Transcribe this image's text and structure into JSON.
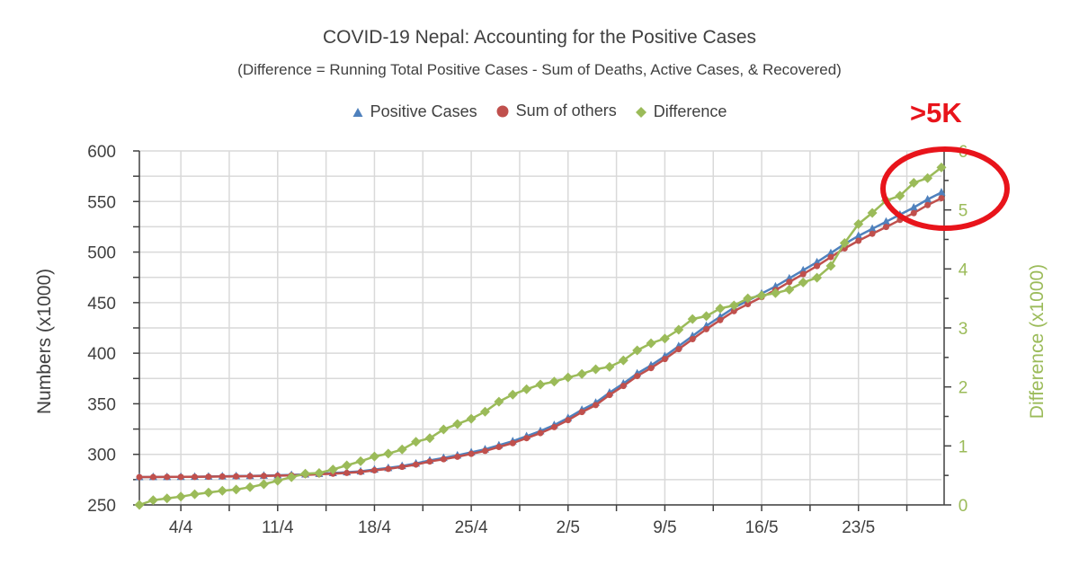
{
  "chart_data": {
    "type": "line",
    "title": "COVID-19 Nepal: Accounting for the Positive Cases",
    "subtitle": "(Difference = Running Total Positive Cases - Sum of Deaths, Active Cases, & Recovered)",
    "ylabel": "Numbers (x1000)",
    "y2label": "Difference (x1000)",
    "ylim": [
      250,
      600
    ],
    "y2lim": [
      0,
      6
    ],
    "yticks": [
      "250",
      "300",
      "350",
      "400",
      "450",
      "500",
      "550",
      "600"
    ],
    "y2ticks": [
      "0",
      "1",
      "2",
      "3",
      "4",
      "5",
      "6"
    ],
    "xticks": [
      "4/4",
      "11/4",
      "18/4",
      "25/4",
      "2/5",
      "9/5",
      "16/5",
      "23/5"
    ],
    "grid": true,
    "legend_position": "top",
    "x": [
      "1/4",
      "2/4",
      "3/4",
      "4/4",
      "5/4",
      "6/4",
      "7/4",
      "8/4",
      "9/4",
      "10/4",
      "11/4",
      "12/4",
      "13/4",
      "14/4",
      "15/4",
      "16/4",
      "17/4",
      "18/4",
      "19/4",
      "20/4",
      "21/4",
      "22/4",
      "23/4",
      "24/4",
      "25/4",
      "26/4",
      "27/4",
      "28/4",
      "29/4",
      "30/4",
      "1/5",
      "2/5",
      "3/5",
      "4/5",
      "5/5",
      "6/5",
      "7/5",
      "8/5",
      "9/5",
      "10/5",
      "11/5",
      "12/5",
      "13/5",
      "14/5",
      "15/5",
      "16/5",
      "17/5",
      "18/5",
      "19/5",
      "20/5",
      "21/5",
      "22/5",
      "23/5",
      "24/5",
      "25/5",
      "26/5",
      "27/5",
      "28/5",
      "29/5"
    ],
    "series": [
      {
        "name": "Positive Cases",
        "axis": "left",
        "marker": "triangle",
        "color": "#4f81bd",
        "values": [
          277.5,
          277.6,
          277.7,
          277.8,
          277.9,
          278.1,
          278.3,
          278.5,
          278.7,
          279.0,
          279.3,
          279.7,
          280.2,
          280.8,
          281.5,
          282.3,
          283.2,
          285,
          286.5,
          288.5,
          291,
          294,
          296.5,
          299,
          302,
          305,
          309,
          313,
          318,
          323,
          329,
          336,
          344,
          351,
          361,
          370,
          380,
          388,
          397,
          407,
          417,
          427,
          436,
          445,
          452,
          459,
          466,
          474,
          482,
          490,
          499,
          508,
          516,
          523,
          530,
          537,
          544,
          552,
          559
        ]
      },
      {
        "name": "Sum of others",
        "axis": "left",
        "marker": "circle",
        "color": "#c0504d",
        "values": [
          277.5,
          277.5,
          277.6,
          277.7,
          277.7,
          277.9,
          278.1,
          278.2,
          278.4,
          278.7,
          278.9,
          279.2,
          279.7,
          280.3,
          280.9,
          281.6,
          282.5,
          284.2,
          285.6,
          287.6,
          289.9,
          292.9,
          295.2,
          297.6,
          300.5,
          303.4,
          307.3,
          311.1,
          316.0,
          321.0,
          326.9,
          333.8,
          341.8,
          348.7,
          358.7,
          367.6,
          377.4,
          385.3,
          394.2,
          404.0,
          413.9,
          423.8,
          432.7,
          441.6,
          448.5,
          455.5,
          462.4,
          470.4,
          478.2,
          486.2,
          495.0,
          503.6,
          511.2,
          518.1,
          524.8,
          531.8,
          538.5,
          546.5,
          553.3
        ]
      },
      {
        "name": "Difference",
        "axis": "right",
        "marker": "diamond",
        "color": "#9bbb59",
        "values": [
          0.0,
          0.08,
          0.11,
          0.14,
          0.18,
          0.21,
          0.24,
          0.26,
          0.3,
          0.35,
          0.41,
          0.47,
          0.53,
          0.54,
          0.6,
          0.67,
          0.74,
          0.82,
          0.87,
          0.94,
          1.07,
          1.13,
          1.28,
          1.37,
          1.46,
          1.58,
          1.75,
          1.87,
          1.96,
          2.04,
          2.09,
          2.16,
          2.22,
          2.3,
          2.34,
          2.45,
          2.62,
          2.74,
          2.82,
          2.97,
          3.15,
          3.2,
          3.33,
          3.38,
          3.5,
          3.55,
          3.59,
          3.65,
          3.77,
          3.85,
          4.05,
          4.44,
          4.76,
          4.95,
          5.16,
          5.24,
          5.46,
          5.54,
          5.72
        ]
      }
    ],
    "annotation": {
      "text": ">5K",
      "color": "#e8141b",
      "shape": "ellipse"
    }
  }
}
